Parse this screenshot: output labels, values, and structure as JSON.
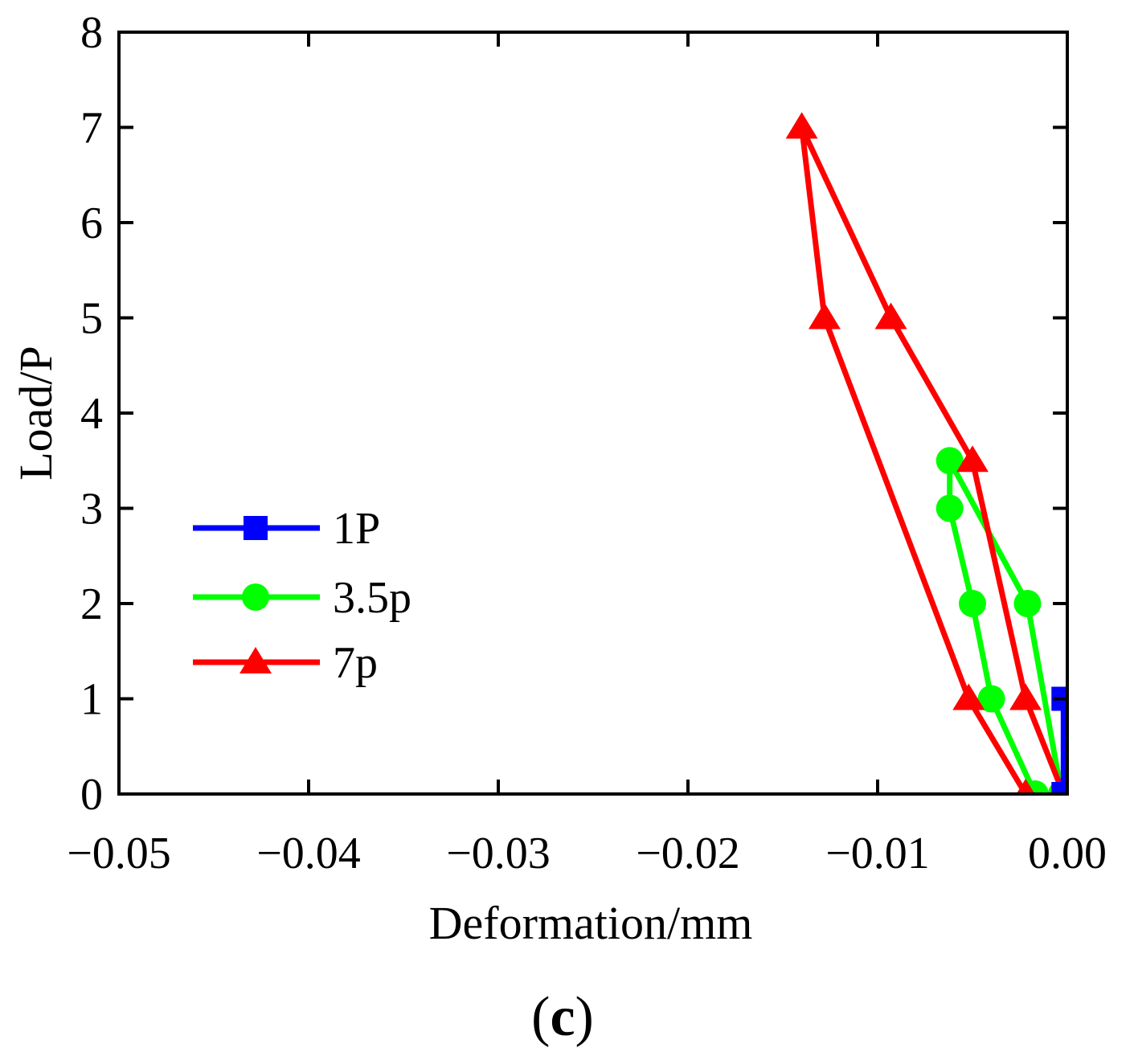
{
  "chart_data": {
    "type": "line",
    "xlabel": "Deformation/mm",
    "ylabel": "Load/P",
    "panel_label": {
      "open": "(",
      "letter": "c",
      "close": ")"
    },
    "xlim": [
      -0.05,
      0.0
    ],
    "ylim": [
      0,
      8
    ],
    "x_ticks": [
      {
        "value": -0.05,
        "label": "−0.05"
      },
      {
        "value": -0.04,
        "label": "−0.04"
      },
      {
        "value": -0.03,
        "label": "−0.03"
      },
      {
        "value": -0.02,
        "label": "−0.02"
      },
      {
        "value": -0.01,
        "label": "−0.01"
      },
      {
        "value": 0.0,
        "label": "0.00"
      }
    ],
    "y_ticks": [
      {
        "value": 0,
        "label": "0"
      },
      {
        "value": 1,
        "label": "1"
      },
      {
        "value": 2,
        "label": "2"
      },
      {
        "value": 3,
        "label": "3"
      },
      {
        "value": 4,
        "label": "4"
      },
      {
        "value": 5,
        "label": "5"
      },
      {
        "value": 6,
        "label": "6"
      },
      {
        "value": 7,
        "label": "7"
      },
      {
        "value": 8,
        "label": "8"
      }
    ],
    "grid": false,
    "legend_position": "left-middle",
    "series": [
      {
        "name": "1P",
        "color": "#0000ff",
        "marker": "square",
        "points": [
          {
            "x": -0.0002,
            "y": 0
          },
          {
            "x": -0.0002,
            "y": 1
          },
          {
            "x": -0.0001,
            "y": 0
          }
        ]
      },
      {
        "name": "3.5p",
        "color": "#00ff00",
        "marker": "circle",
        "points": [
          {
            "x": -0.0003,
            "y": 0
          },
          {
            "x": -0.0021,
            "y": 2
          },
          {
            "x": -0.0062,
            "y": 3.5
          },
          {
            "x": -0.0062,
            "y": 3
          },
          {
            "x": -0.005,
            "y": 2
          },
          {
            "x": -0.004,
            "y": 1
          },
          {
            "x": -0.0017,
            "y": 0
          }
        ]
      },
      {
        "name": "7p",
        "color": "#ff0000",
        "marker": "triangle",
        "points": [
          {
            "x": -0.0002,
            "y": 0
          },
          {
            "x": -0.0022,
            "y": 1
          },
          {
            "x": -0.005,
            "y": 3.5
          },
          {
            "x": -0.0093,
            "y": 5
          },
          {
            "x": -0.014,
            "y": 7
          },
          {
            "x": -0.0128,
            "y": 5
          },
          {
            "x": -0.0052,
            "y": 1
          },
          {
            "x": -0.0022,
            "y": 0
          }
        ]
      }
    ]
  }
}
